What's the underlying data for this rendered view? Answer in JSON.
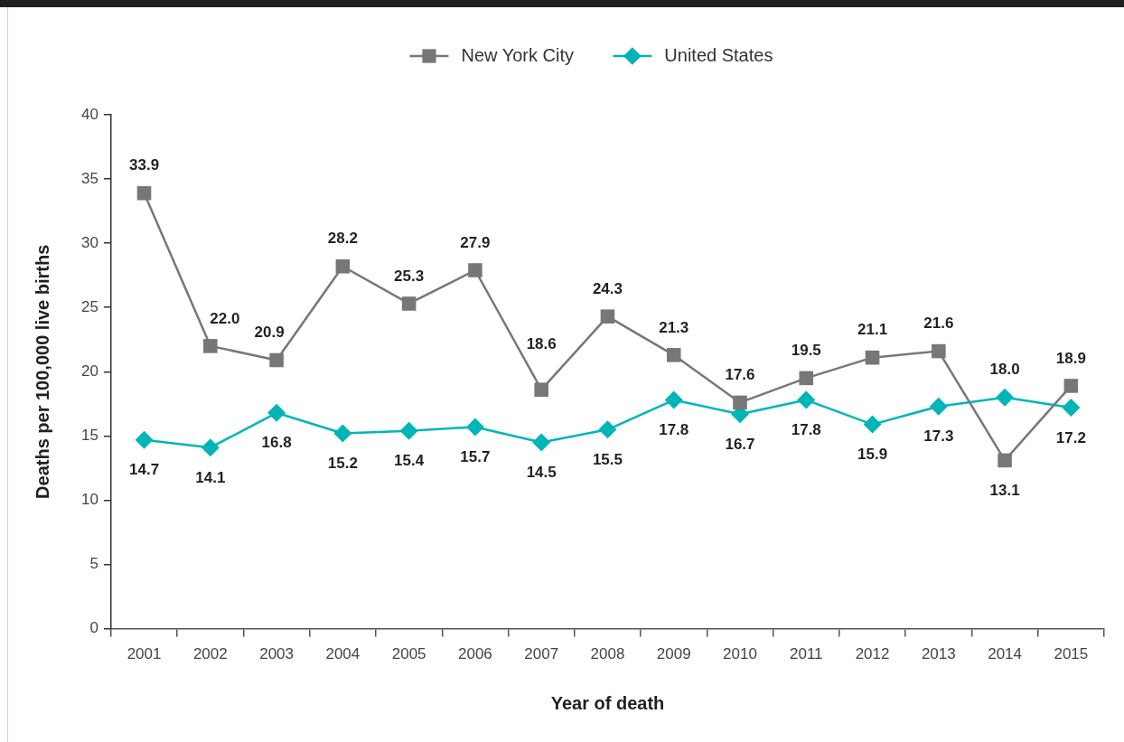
{
  "chart_data": {
    "type": "line",
    "xlabel": "Year of death",
    "ylabel": "Deaths per 100,000 live births",
    "categories": [
      "2001",
      "2002",
      "2003",
      "2004",
      "2005",
      "2006",
      "2007",
      "2008",
      "2009",
      "2010",
      "2011",
      "2012",
      "2013",
      "2014",
      "2015"
    ],
    "ylim": [
      0,
      40
    ],
    "yticks": [
      0,
      5,
      10,
      15,
      20,
      25,
      30,
      35,
      40
    ],
    "legend": "top",
    "series": [
      {
        "name": "New York City",
        "color": "#777777",
        "marker": "square",
        "values": [
          33.9,
          22.0,
          20.9,
          28.2,
          25.3,
          27.9,
          18.6,
          24.3,
          21.3,
          17.6,
          19.5,
          21.1,
          21.6,
          13.1,
          18.9
        ],
        "value_labels": [
          "33.9",
          "22.0",
          "20.9",
          "28.2",
          "25.3",
          "27.9",
          "18.6",
          "24.3",
          "21.3",
          "17.6",
          "19.5",
          "21.1",
          "21.6",
          "13.1",
          "18.9"
        ]
      },
      {
        "name": "United States",
        "color": "#00b5b8",
        "marker": "diamond",
        "values": [
          14.7,
          14.1,
          16.8,
          15.2,
          15.4,
          15.7,
          14.5,
          15.5,
          17.8,
          16.7,
          17.8,
          15.9,
          17.3,
          18.0,
          17.2
        ],
        "value_labels": [
          "14.7",
          "14.1",
          "16.8",
          "15.2",
          "15.4",
          "15.7",
          "14.5",
          "15.5",
          "17.8",
          "16.7",
          "17.8",
          "15.9",
          "17.3",
          "18.0",
          "17.2"
        ]
      }
    ]
  }
}
